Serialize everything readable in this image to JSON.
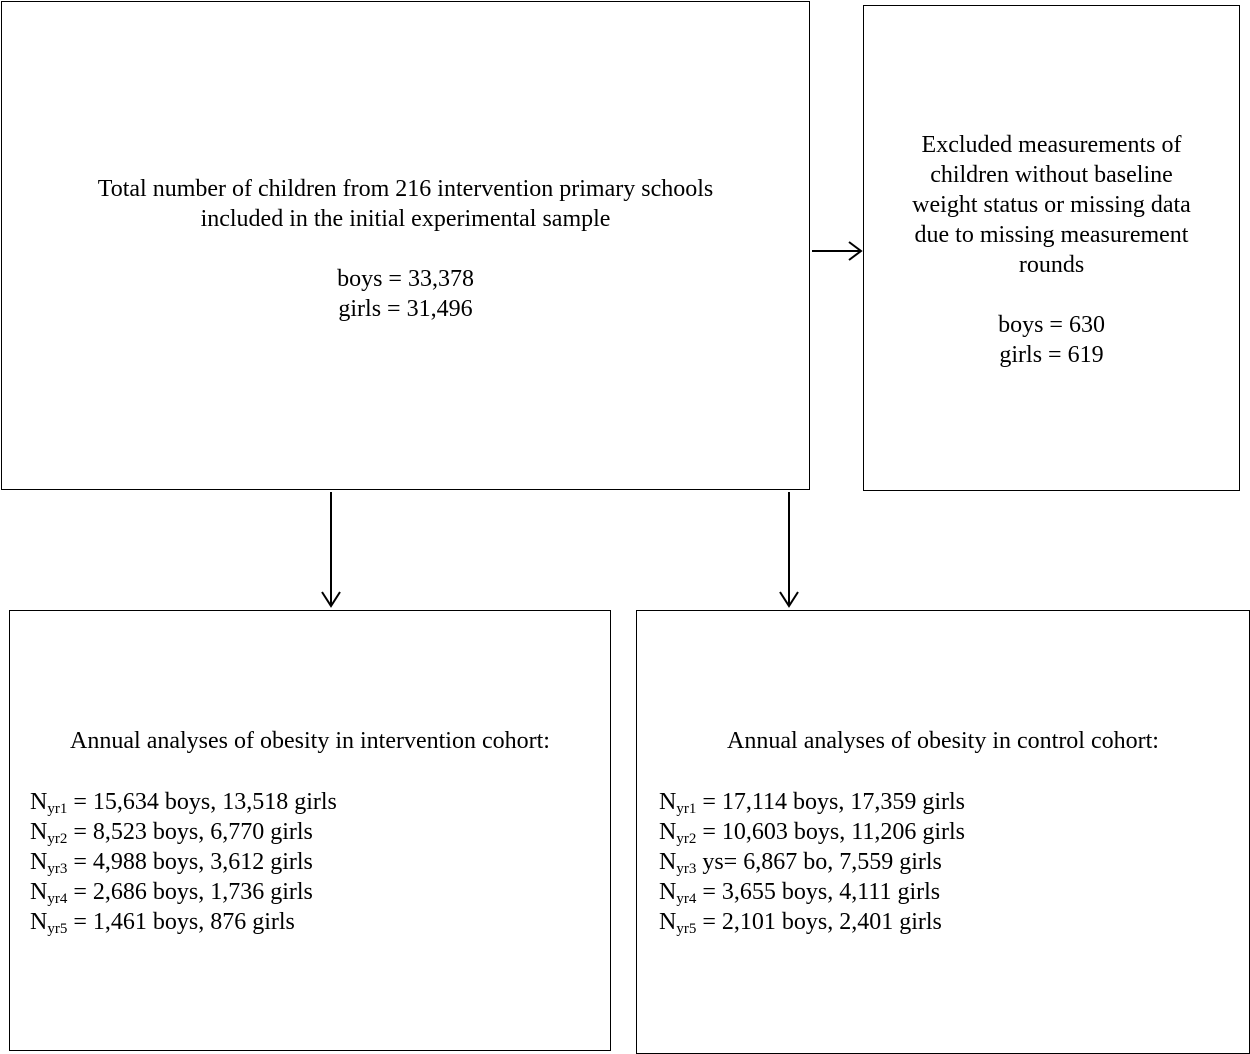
{
  "main_box": {
    "line1": "Total number of children from 216 intervention primary schools",
    "line2": "included in the initial experimental sample",
    "boys": "boys = 33,378",
    "girls": "girls = 31,496"
  },
  "excluded_box": {
    "lines": [
      "Excluded measurements of",
      "children without baseline",
      "weight status or missing data",
      "due to missing measurement",
      "rounds"
    ],
    "boys": "boys = 630",
    "girls": "girls = 619"
  },
  "intervention_box": {
    "title": "Annual analyses of obesity in intervention cohort:",
    "rows": [
      {
        "n": "N",
        "sub": "yr1",
        "text": " = 15,634 boys, 13,518 girls"
      },
      {
        "n": "N",
        "sub": "yr2",
        "text": " = 8,523 boys, 6,770 girls"
      },
      {
        "n": "N",
        "sub": "yr3",
        "text": " = 4,988 boys, 3,612 girls"
      },
      {
        "n": "N",
        "sub": "yr4",
        "text": " = 2,686 boys, 1,736 girls"
      },
      {
        "n": "N",
        "sub": "yr5",
        "text": " = 1,461 boys, 876 girls"
      }
    ]
  },
  "control_box": {
    "title": "Annual analyses of obesity in control cohort:",
    "rows": [
      {
        "n": "N",
        "sub": "yr1",
        "text": " = 17,114 boys, 17,359 girls"
      },
      {
        "n": "N",
        "sub": "yr2",
        "text": " = 10,603 boys, 11,206 girls"
      },
      {
        "n": "N",
        "sub": "yr3",
        "text": " ys= 6,867 bo, 7,559 girls"
      },
      {
        "n": "N",
        "sub": "yr4",
        "text": " = 3,655 boys, 4,111 girls"
      },
      {
        "n": "N",
        "sub": "yr5",
        "text": " = 2,101 boys, 2,401 girls"
      }
    ]
  }
}
